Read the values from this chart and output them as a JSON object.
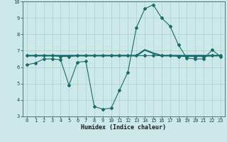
{
  "xlabel": "Humidex (Indice chaleur)",
  "ylabel": "",
  "bg_color": "#cce8e8",
  "grid_color": "#aad0d0",
  "line_color": "#1a6b6b",
  "xlim": [
    -0.5,
    23.5
  ],
  "ylim": [
    3,
    10
  ],
  "xticks": [
    0,
    1,
    2,
    3,
    4,
    5,
    6,
    7,
    8,
    9,
    10,
    11,
    12,
    13,
    14,
    15,
    16,
    17,
    18,
    19,
    20,
    21,
    22,
    23
  ],
  "yticks": [
    3,
    4,
    5,
    6,
    7,
    8,
    9,
    10
  ],
  "curve1_x": [
    0,
    1,
    2,
    3,
    4,
    5,
    6,
    7,
    8,
    9,
    10,
    11,
    12,
    13,
    14,
    15,
    16,
    17,
    18,
    19,
    20,
    21,
    22,
    23
  ],
  "curve1_y": [
    6.15,
    6.25,
    6.5,
    6.5,
    6.45,
    4.9,
    6.3,
    6.35,
    3.6,
    3.45,
    3.5,
    4.6,
    5.7,
    8.4,
    9.55,
    9.8,
    9.0,
    8.5,
    7.35,
    6.55,
    6.5,
    6.5,
    7.05,
    6.65
  ],
  "curve2_x": [
    0,
    1,
    2,
    3,
    4,
    5,
    6,
    7,
    8,
    9,
    10,
    11,
    12,
    13,
    14,
    15,
    16,
    17,
    18,
    19,
    20,
    21,
    22,
    23
  ],
  "curve2_y": [
    6.7,
    6.7,
    6.7,
    6.7,
    6.65,
    6.65,
    6.7,
    6.7,
    6.7,
    6.7,
    6.7,
    6.7,
    6.7,
    6.7,
    6.7,
    6.7,
    6.7,
    6.7,
    6.65,
    6.65,
    6.65,
    6.65,
    6.7,
    6.7
  ],
  "curve3_x": [
    0,
    1,
    2,
    3,
    4,
    5,
    6,
    7,
    8,
    9,
    10,
    11,
    12,
    13,
    14,
    15,
    16,
    17,
    18,
    19,
    20,
    21,
    22,
    23
  ],
  "curve3_y": [
    6.7,
    6.7,
    6.7,
    6.7,
    6.7,
    6.7,
    6.7,
    6.7,
    6.7,
    6.7,
    6.7,
    6.7,
    6.7,
    6.7,
    7.05,
    6.85,
    6.7,
    6.7,
    6.7,
    6.7,
    6.7,
    6.7,
    6.7,
    6.7
  ],
  "marker": "D",
  "markersize": 2.0,
  "linewidth": 0.8,
  "tick_fontsize": 5.0,
  "xlabel_fontsize": 6.0
}
